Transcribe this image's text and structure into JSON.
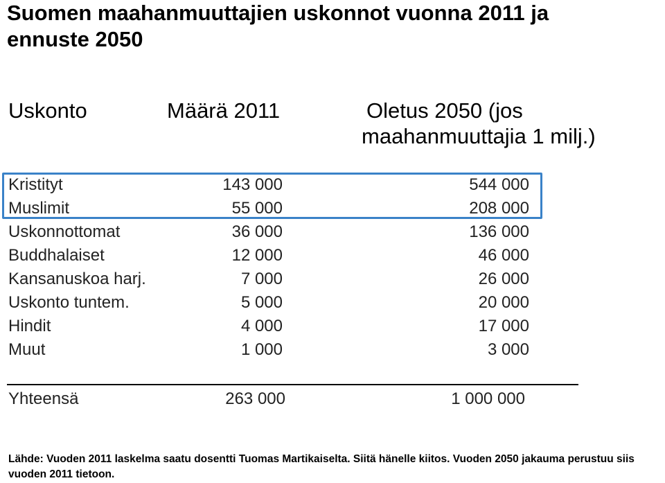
{
  "title": "Suomen maahanmuuttajien uskonnot vuonna 2011 ja ennuste 2050",
  "headers": {
    "religion": "Uskonto",
    "count_2011": "Määrä 2011",
    "forecast_line1": "Oletus 2050 (jos",
    "forecast_line2": "maahanmuuttajia 1 milj.)"
  },
  "highlight_color": "#3a82c8",
  "rows": [
    {
      "name": "Kristityt",
      "v2011": "143 000",
      "v2050": "544 000"
    },
    {
      "name": "Muslimit",
      "v2011": "55 000",
      "v2050": "208 000"
    },
    {
      "name": "Uskonnottomat",
      "v2011": "36 000",
      "v2050": "136 000"
    },
    {
      "name": "Buddhalaiset",
      "v2011": "12 000",
      "v2050": "46 000"
    },
    {
      "name": "Kansanuskoa harj.",
      "v2011": "7 000",
      "v2050": "26 000"
    },
    {
      "name": "Uskonto tuntem.",
      "v2011": "5 000",
      "v2050": "20 000"
    },
    {
      "name": "Hindit",
      "v2011": "4 000",
      "v2050": "17 000"
    },
    {
      "name": "Muut",
      "v2011": "1 000",
      "v2050": "3 000"
    }
  ],
  "total": {
    "name": "Yhteensä",
    "v2011": "263 000",
    "v2050": "1 000 000"
  },
  "source": "Lähde: Vuoden 2011 laskelma saatu dosentti Tuomas Martikaiselta. Siitä hänelle kiitos. Vuoden 2050 jakauma perustuu siis vuoden 2011 tietoon."
}
